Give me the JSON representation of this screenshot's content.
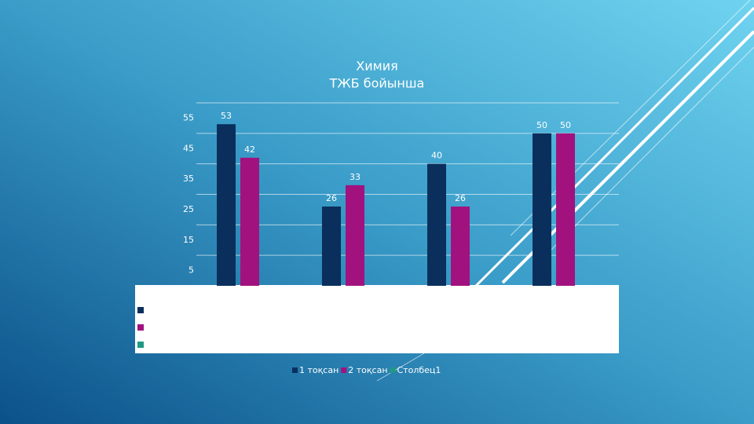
{
  "chart_data": {
    "type": "bar",
    "title": [
      "Химия",
      "ТЖБ бойынша"
    ],
    "categories": [
      null,
      null,
      null,
      null
    ],
    "series": [
      {
        "name": "1 тоқсан",
        "color": "#0a2f5c",
        "values": [
          53,
          26,
          40,
          50
        ]
      },
      {
        "name": "2 тоқсан",
        "color": "#a1127f",
        "values": [
          42,
          33,
          26,
          50
        ]
      },
      {
        "name": "Столбец1",
        "color": "#1e9a82",
        "values": [
          null,
          null,
          null,
          null
        ]
      }
    ],
    "ylim": [
      0,
      60
    ],
    "yticks": [
      5,
      15,
      25,
      35,
      45,
      55
    ],
    "grid_values": [
      10,
      20,
      30,
      40,
      50,
      60
    ],
    "grid": true,
    "legend": "bottom",
    "data_table": true
  }
}
